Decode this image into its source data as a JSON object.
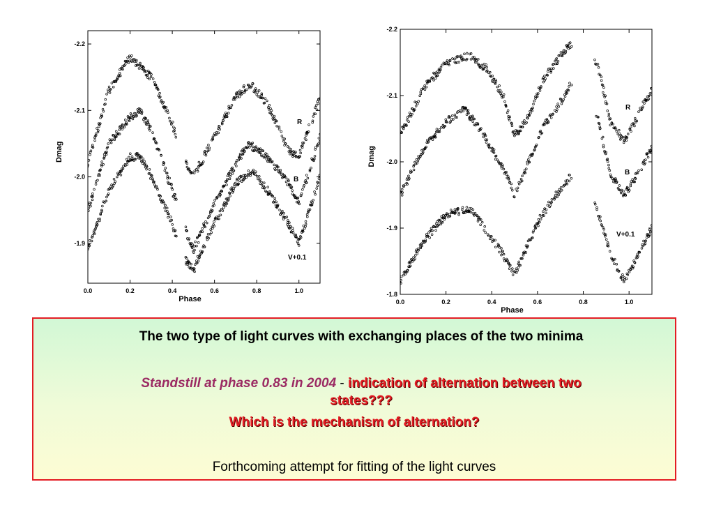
{
  "chart_data": [
    {
      "type": "scatter",
      "title": "",
      "xlabel": "Phase",
      "ylabel": "Dmag",
      "xlim": [
        0.0,
        1.1
      ],
      "ylim": [
        -2.22,
        -1.84
      ],
      "y_inverted": true,
      "x_ticks": [
        "0.0",
        "0.2",
        "0.4",
        "0.6",
        "0.8",
        "1.0"
      ],
      "y_ticks": [
        "-2.2",
        "-2.1",
        "-2.0",
        "-1.9"
      ],
      "grid": false,
      "series": [
        {
          "name": "R",
          "x": [
            0.0,
            0.1,
            0.2,
            0.3,
            0.4,
            0.45,
            0.5,
            0.6,
            0.7,
            0.77,
            0.85,
            0.95,
            1.0,
            1.1
          ],
          "values": [
            -2.02,
            -2.13,
            -2.18,
            -2.15,
            -2.08,
            -2.03,
            -2.0,
            -2.06,
            -2.12,
            -2.14,
            -2.11,
            -2.04,
            -2.03,
            -2.12
          ]
        },
        {
          "name": "B",
          "x": [
            0.0,
            0.1,
            0.2,
            0.25,
            0.3,
            0.4,
            0.45,
            0.5,
            0.6,
            0.7,
            0.76,
            0.85,
            0.95,
            1.0,
            1.1
          ],
          "values": [
            -1.95,
            -2.05,
            -2.09,
            -2.1,
            -2.07,
            -1.98,
            -1.93,
            -1.89,
            -1.96,
            -2.02,
            -2.05,
            -2.03,
            -1.99,
            -1.96,
            -2.06
          ]
        },
        {
          "name": "V+0.1",
          "x": [
            0.0,
            0.1,
            0.2,
            0.25,
            0.3,
            0.4,
            0.45,
            0.5,
            0.6,
            0.7,
            0.78,
            0.85,
            0.95,
            1.0,
            1.1
          ],
          "values": [
            -1.89,
            -1.98,
            -2.03,
            -2.03,
            -2.0,
            -1.93,
            -1.88,
            -1.86,
            -1.93,
            -1.99,
            -2.01,
            -1.98,
            -1.93,
            -1.9,
            -2.0
          ]
        }
      ],
      "series_labels": [
        "R",
        "B",
        "V+0.1"
      ]
    },
    {
      "type": "scatter",
      "title": "",
      "xlabel": "Phase",
      "ylabel": "Dmag",
      "xlim": [
        0.0,
        1.1
      ],
      "ylim": [
        -2.2,
        -1.8
      ],
      "y_inverted": true,
      "x_ticks": [
        "0.0",
        "0.2",
        "0.4",
        "0.6",
        "0.8",
        "1.0"
      ],
      "y_ticks": [
        "-2.2",
        "-2.1",
        "-2.0",
        "-1.9",
        "-1.8"
      ],
      "grid": false,
      "series": [
        {
          "name": "R",
          "x": [
            0.0,
            0.1,
            0.2,
            0.3,
            0.38,
            0.45,
            0.5,
            0.55,
            0.62,
            0.7,
            0.75,
            0.86,
            0.92,
            0.98,
            1.1
          ],
          "values": [
            -2.04,
            -2.11,
            -2.15,
            -2.16,
            -2.14,
            -2.1,
            -2.04,
            -2.06,
            -2.12,
            -2.16,
            -2.18,
            -2.15,
            -2.06,
            -2.03,
            -2.11
          ]
        },
        {
          "name": "B",
          "x": [
            0.0,
            0.1,
            0.2,
            0.28,
            0.35,
            0.45,
            0.5,
            0.55,
            0.62,
            0.7,
            0.75,
            0.86,
            0.92,
            0.98,
            1.1
          ],
          "values": [
            -1.95,
            -2.02,
            -2.06,
            -2.08,
            -2.05,
            -1.99,
            -1.95,
            -1.99,
            -2.05,
            -2.09,
            -2.12,
            -2.07,
            -1.98,
            -1.95,
            -2.02
          ]
        },
        {
          "name": "V+0.1",
          "x": [
            0.0,
            0.1,
            0.2,
            0.3,
            0.35,
            0.45,
            0.5,
            0.55,
            0.62,
            0.7,
            0.75,
            0.86,
            0.92,
            0.98,
            1.1
          ],
          "values": [
            -1.82,
            -1.88,
            -1.92,
            -1.93,
            -1.91,
            -1.86,
            -1.83,
            -1.87,
            -1.92,
            -1.96,
            -1.98,
            -1.93,
            -1.86,
            -1.82,
            -1.9
          ]
        }
      ],
      "series_labels": [
        "R",
        "B",
        "V+0.1"
      ]
    }
  ],
  "text_box": {
    "heading": "The two type of light curves with exchanging places of the two minima",
    "standstill": "Standstill at phase 0.83 in 2004",
    "dash": " - ",
    "indication": "indication of alternation between two states???",
    "question": "Which is the mechanism of alternation?",
    "footer": "Forthcoming attempt for fitting of the light curves",
    "colors": {
      "border": "#e31c23",
      "highlight": "#e31c23",
      "standstill": "#9b2a63"
    }
  }
}
